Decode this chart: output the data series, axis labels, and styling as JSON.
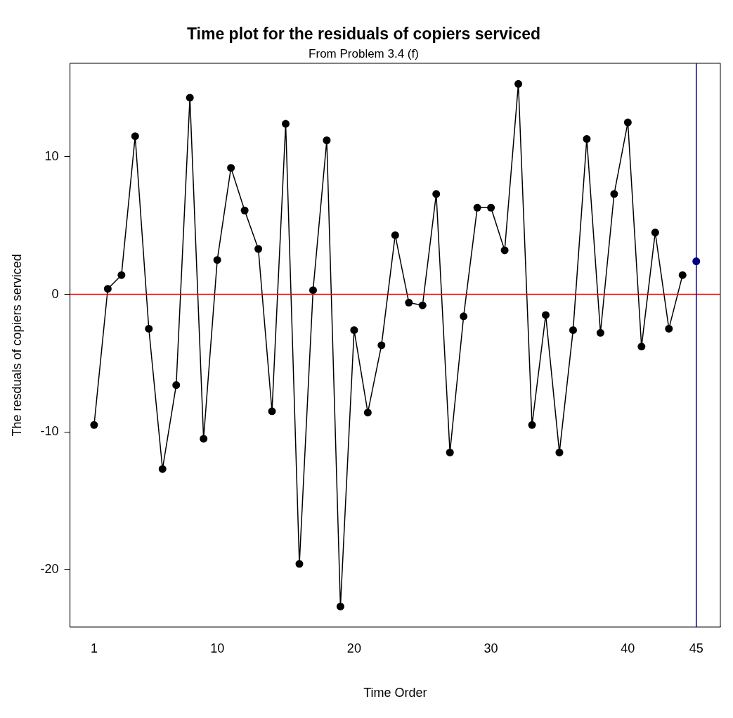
{
  "chart_data": {
    "type": "line",
    "title": "Time plot for the residuals of copiers serviced",
    "subtitle": "From Problem 3.4 (f)",
    "xlabel": "Time Order",
    "ylabel": "The resduals of copiers serviced",
    "xlim": [
      -0.76,
      46.76
    ],
    "xticks": [
      1,
      10,
      20,
      30,
      40,
      45
    ],
    "ylim": [
      -24.2,
      16.8
    ],
    "yticks": [
      -20,
      -10,
      0,
      10
    ],
    "grid": false,
    "legend": false,
    "marker": "circle",
    "line_style": "solid",
    "series": [
      {
        "color": "#000000",
        "x": [
          1,
          2,
          3,
          4,
          5,
          6,
          7,
          8,
          9,
          10,
          11,
          12,
          13,
          14,
          15,
          16,
          17,
          18,
          19,
          20,
          21,
          22,
          23,
          24,
          25,
          26,
          27,
          28,
          29,
          30,
          31,
          32,
          33,
          34,
          35,
          36,
          37,
          38,
          39,
          40,
          41,
          42,
          43,
          44
        ],
        "values": [
          -9.5,
          0.4,
          1.4,
          11.5,
          -2.5,
          -12.7,
          -6.6,
          14.3,
          -10.5,
          2.5,
          9.2,
          6.1,
          3.3,
          -8.5,
          12.4,
          -19.6,
          0.3,
          11.2,
          -22.7,
          -2.6,
          -8.6,
          -3.7,
          4.3,
          -0.6,
          -0.8,
          7.3,
          -11.5,
          -1.6,
          6.3,
          6.3,
          3.2,
          15.3,
          -9.5,
          -1.5,
          -11.5,
          -2.6,
          11.3,
          -2.8,
          7.3,
          12.5,
          -3.8,
          4.5,
          -2.5,
          1.4
        ]
      },
      {
        "type": "scatter",
        "color": "#000080",
        "x": [
          45
        ],
        "values": [
          2.4
        ]
      }
    ],
    "ref_lines": [
      {
        "axis": "y",
        "value": 0,
        "color": "#ff0000"
      },
      {
        "axis": "x",
        "value": 45,
        "color": "#000080"
      }
    ]
  }
}
